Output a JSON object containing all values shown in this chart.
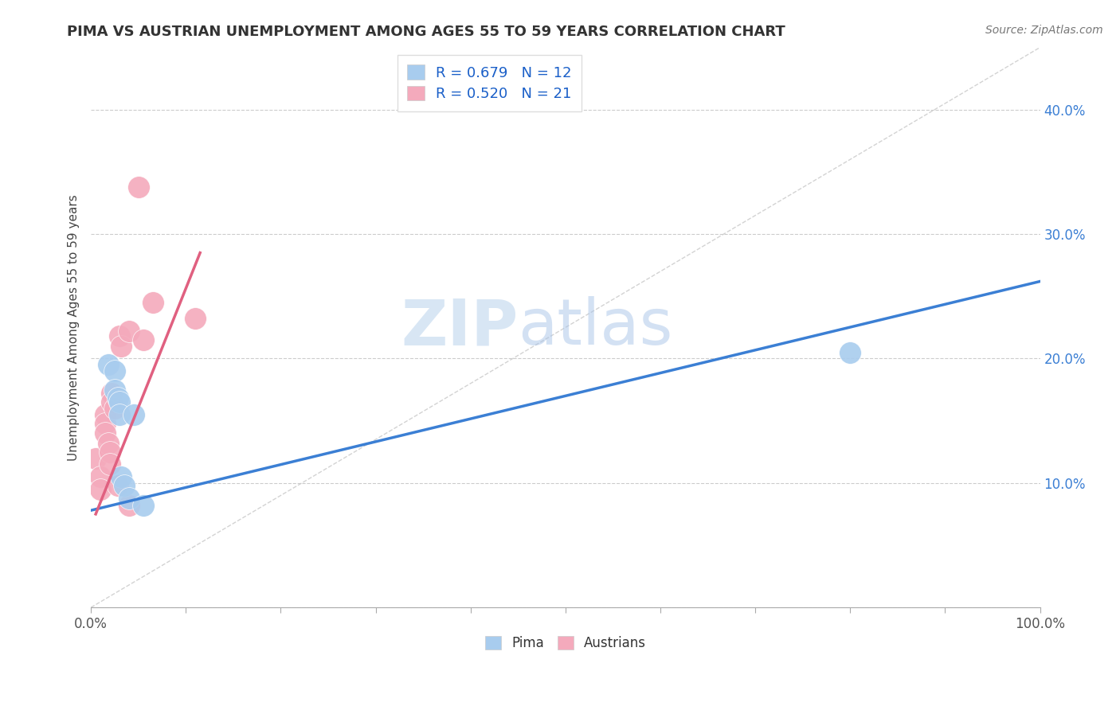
{
  "title": "PIMA VS AUSTRIAN UNEMPLOYMENT AMONG AGES 55 TO 59 YEARS CORRELATION CHART",
  "source": "Source: ZipAtlas.com",
  "ylabel": "Unemployment Among Ages 55 to 59 years",
  "xlim": [
    0,
    1.0
  ],
  "ylim": [
    0,
    0.45
  ],
  "yticks": [
    0.0,
    0.1,
    0.2,
    0.3,
    0.4
  ],
  "ytick_labels": [
    "",
    "10.0%",
    "20.0%",
    "30.0%",
    "40.0%"
  ],
  "pima_R": "0.679",
  "pima_N": "12",
  "austrian_R": "0.520",
  "austrian_N": "21",
  "pima_color": "#A8CCEE",
  "austrian_color": "#F4AABC",
  "pima_line_color": "#3B7FD4",
  "austrian_line_color": "#E06080",
  "diagonal_color": "#C8C8C8",
  "background_color": "#FFFFFF",
  "watermark_zip": "ZIP",
  "watermark_atlas": "atlas",
  "pima_points": [
    [
      0.018,
      0.195
    ],
    [
      0.025,
      0.19
    ],
    [
      0.025,
      0.175
    ],
    [
      0.028,
      0.168
    ],
    [
      0.03,
      0.165
    ],
    [
      0.03,
      0.155
    ],
    [
      0.032,
      0.105
    ],
    [
      0.035,
      0.098
    ],
    [
      0.04,
      0.088
    ],
    [
      0.045,
      0.155
    ],
    [
      0.055,
      0.082
    ],
    [
      0.8,
      0.205
    ]
  ],
  "austrian_points": [
    [
      0.005,
      0.12
    ],
    [
      0.01,
      0.105
    ],
    [
      0.01,
      0.095
    ],
    [
      0.015,
      0.155
    ],
    [
      0.015,
      0.148
    ],
    [
      0.015,
      0.14
    ],
    [
      0.018,
      0.132
    ],
    [
      0.02,
      0.125
    ],
    [
      0.02,
      0.115
    ],
    [
      0.022,
      0.172
    ],
    [
      0.022,
      0.165
    ],
    [
      0.025,
      0.16
    ],
    [
      0.028,
      0.098
    ],
    [
      0.03,
      0.218
    ],
    [
      0.032,
      0.21
    ],
    [
      0.04,
      0.222
    ],
    [
      0.04,
      0.082
    ],
    [
      0.05,
      0.338
    ],
    [
      0.055,
      0.215
    ],
    [
      0.065,
      0.245
    ],
    [
      0.11,
      0.232
    ]
  ],
  "pima_line_x": [
    0.0,
    1.0
  ],
  "pima_line_y": [
    0.078,
    0.262
  ],
  "austrian_line_x": [
    0.005,
    0.115
  ],
  "austrian_line_y": [
    0.075,
    0.285
  ]
}
